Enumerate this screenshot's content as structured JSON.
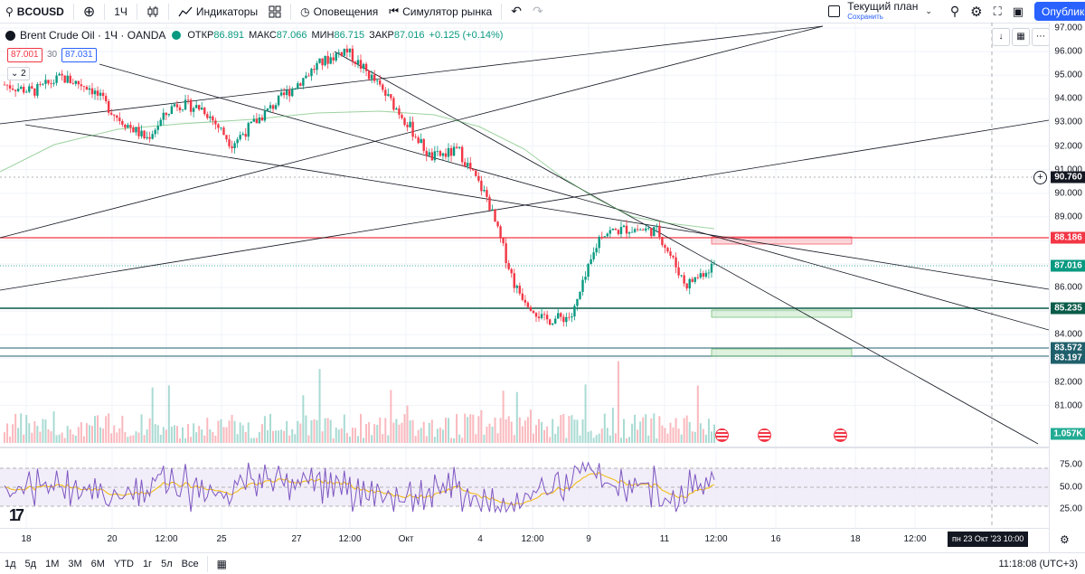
{
  "topbar": {
    "symbol": "BCOUSD",
    "interval": "1Ч",
    "indicators": "Индикаторы",
    "alerts": "Оповещения",
    "replay": "Симулятор рынка",
    "plan_title": "Текущий план",
    "plan_status": "Сохранить",
    "publish": "Опубликовать"
  },
  "legend": {
    "title": "Brent Crude Oil · 1Ч · OANDA",
    "open_label": "ОТКР",
    "open": "86.891",
    "high_label": "МАКС",
    "high": "87.066",
    "low_label": "МИН",
    "low": "86.715",
    "close_label": "ЗАКР",
    "close": "87.016",
    "change": "+0.125 (+0.14%)",
    "bid": "87.001",
    "spread": "30",
    "ask": "87.031",
    "indicator_toggle": "2"
  },
  "price_axis": {
    "ticks": [
      "97.000",
      "96.000",
      "95.000",
      "94.000",
      "93.000",
      "92.000",
      "91.000",
      "90.000",
      "89.000",
      "88.000",
      "87.000",
      "86.000",
      "85.000",
      "84.000",
      "83.000",
      "82.000",
      "81.000"
    ],
    "labels": [
      {
        "text": "90.760",
        "color": "#131722"
      },
      {
        "text": "88.186",
        "color": "#f23645"
      },
      {
        "text": "87.016",
        "color": "#089981"
      },
      {
        "text": "85.235",
        "color": "#0b5c4a"
      },
      {
        "text": "83.572",
        "color": "#1f5f6b"
      },
      {
        "text": "83.197",
        "color": "#1f5f6b"
      },
      {
        "text": "1.057K",
        "color": "#22ab94"
      }
    ]
  },
  "rsi_axis": {
    "ticks": [
      "75.00",
      "50.00",
      "25.00"
    ]
  },
  "time_axis": {
    "ticks": [
      "18",
      "20",
      "12:00",
      "25",
      "27",
      "12:00",
      "Окт",
      "4",
      "12:00",
      "9",
      "11",
      "12:00",
      "16",
      "18",
      "12:00"
    ],
    "cursor": "пн 23 Окт '23   10:00"
  },
  "bottombar": {
    "ranges": [
      "1д",
      "5д",
      "1М",
      "3М",
      "6М",
      "YTD",
      "1г",
      "5л",
      "Все"
    ],
    "clock": "11:18:08 (UTC+3)"
  },
  "chart_data": {
    "type": "candlestick",
    "symbol": "Brent Crude Oil",
    "interval": "1Ч",
    "ylim": [
      80.5,
      97.2
    ],
    "last_price": 87.016,
    "levels": [
      88.186,
      85.235,
      83.572,
      83.197
    ],
    "path": [
      {
        "x": "18",
        "y": 94.6
      },
      {
        "x": "19",
        "y": 94.3
      },
      {
        "x": "19.5",
        "y": 94.9
      },
      {
        "x": "20",
        "y": 94.5
      },
      {
        "x": "21",
        "y": 93.2
      },
      {
        "x": "21.5",
        "y": 92.3
      },
      {
        "x": "22",
        "y": 93.8
      },
      {
        "x": "25",
        "y": 93.6
      },
      {
        "x": "26",
        "y": 92.1
      },
      {
        "x": "26.5",
        "y": 93.2
      },
      {
        "x": "27",
        "y": 94.3
      },
      {
        "x": "27.5",
        "y": 95.4
      },
      {
        "x": "28",
        "y": 96.1
      },
      {
        "x": "29",
        "y": 94.8
      },
      {
        "x": "Окт",
        "y": 93.3
      },
      {
        "x": "3",
        "y": 91.5
      },
      {
        "x": "4",
        "y": 91.8
      },
      {
        "x": "4.5",
        "y": 89.8
      },
      {
        "x": "5",
        "y": 86.0
      },
      {
        "x": "5.5",
        "y": 84.6
      },
      {
        "x": "6",
        "y": 84.8
      },
      {
        "x": "9",
        "y": 88.3
      },
      {
        "x": "10",
        "y": 88.5
      },
      {
        "x": "11",
        "y": 88.4
      },
      {
        "x": "11.5",
        "y": 86.1
      },
      {
        "x": "12",
        "y": 87.0
      }
    ],
    "rsi": {
      "ticks": [
        75,
        50,
        25
      ],
      "last": 57
    }
  }
}
